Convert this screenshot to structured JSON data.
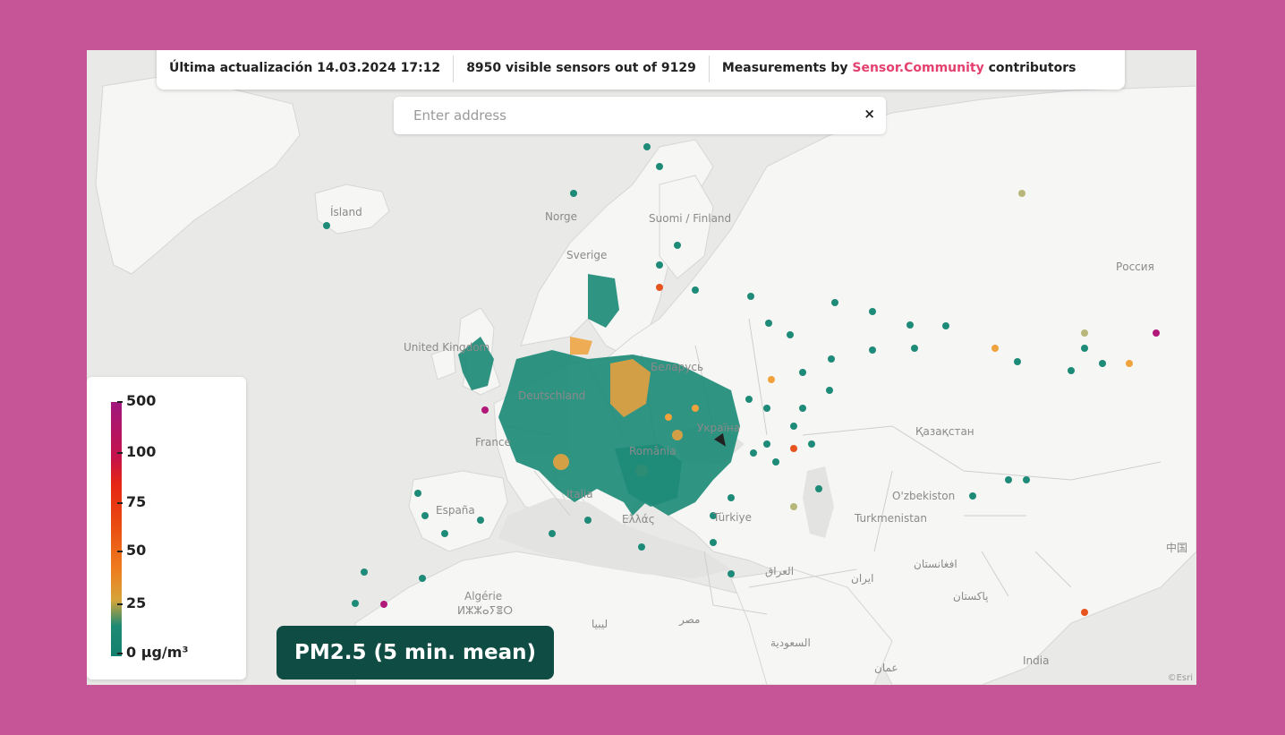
{
  "info_bar": {
    "last_update_label": "Última actualización",
    "last_update_value": "14.03.2024 17:12",
    "visible_count": "8950",
    "visible_text": "visible sensors out of",
    "total_count": "9129",
    "measurements_prefix": "Measurements by",
    "community_name": "Sensor.Community",
    "measurements_suffix": "contributors"
  },
  "search": {
    "placeholder": "Enter address",
    "clear_icon": "×"
  },
  "legend": {
    "labels": [
      "500",
      "100",
      "75",
      "50",
      "25",
      "0 µg/m³"
    ]
  },
  "pm_label": "PM2.5 (5 min. mean)",
  "map": {
    "places": [
      "Ísland",
      "Norge",
      "Suomi / Finland",
      "Sverige",
      "United Kingdom",
      "Deutschland",
      "Беларусь",
      "France",
      "Україна",
      "España",
      "Italia",
      "România",
      "Ελλάς",
      "Türkiye",
      "Россия",
      "Қазақстан",
      "O'zbekiston",
      "Turkmenistan",
      "Algérie",
      "ⵍⵣⵣⴰⵢⴻⵔ",
      "ليبيا",
      "مصر",
      "العراق",
      "ایران",
      "افغانستان",
      "پاکستان",
      "السعودية",
      "عمان",
      "India",
      "中国"
    ]
  },
  "colors": {
    "low": "#1e8b78",
    "moderate": "#f0a23c",
    "high": "#e8541f",
    "very_high": "#b0187a",
    "page_frame": "#c65597",
    "pm_label_bg": "#0f4d44",
    "link": "#e4416f"
  },
  "attribution": "©Esri"
}
